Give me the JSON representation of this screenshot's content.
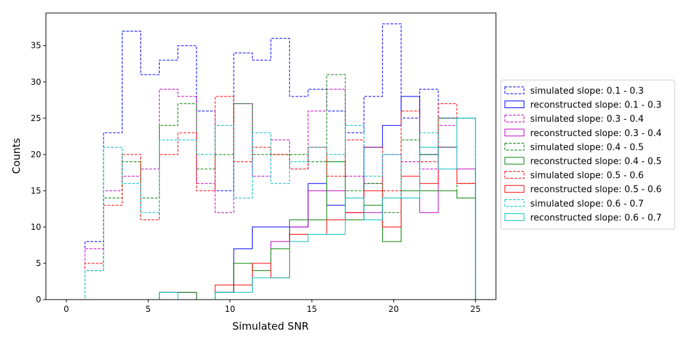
{
  "chart_data": {
    "type": "histogram-step",
    "xlabel": "Simulated SNR",
    "ylabel": "Counts",
    "xlim": [
      -1.25,
      26.25
    ],
    "ylim": [
      0,
      39.5
    ],
    "xticks": [
      0,
      5,
      10,
      15,
      20,
      25
    ],
    "yticks": [
      0,
      5,
      10,
      15,
      20,
      25,
      30,
      35
    ],
    "legend_position": "right-outside",
    "bin_edges": [
      0,
      1.1364,
      2.2727,
      3.4091,
      4.5455,
      5.6818,
      6.8182,
      7.9545,
      9.0909,
      10.2273,
      11.3636,
      12.5,
      13.6364,
      14.7727,
      15.9091,
      17.0455,
      18.1818,
      19.3182,
      20.4545,
      21.5909,
      22.7273,
      23.8636,
      25
    ],
    "series": [
      {
        "name": "simulated slope: 0.1 - 0.3",
        "color": "#0000ff",
        "dashed": true,
        "values": [
          0,
          8,
          23,
          37,
          31,
          33,
          35,
          26,
          15,
          34,
          33,
          36,
          28,
          29,
          26,
          23,
          28,
          38,
          25,
          29,
          25,
          18
        ]
      },
      {
        "name": "reconstructed slope: 0.1 - 0.3",
        "color": "#0000ff",
        "dashed": false,
        "values": [
          0,
          0,
          0,
          0,
          0,
          0,
          0,
          0,
          1,
          7,
          10,
          10,
          10,
          16,
          13,
          14,
          21,
          24,
          28,
          20,
          21,
          18
        ]
      },
      {
        "name": "simulated slope: 0.3 - 0.4",
        "color": "#bf00bf",
        "dashed": true,
        "values": [
          0,
          7,
          15,
          17,
          18,
          29,
          28,
          16,
          12,
          27,
          17,
          22,
          18,
          26,
          29,
          17,
          16,
          20,
          19,
          18,
          24,
          25
        ]
      },
      {
        "name": "reconstructed slope: 0.3 - 0.4",
        "color": "#bf00bf",
        "dashed": false,
        "values": [
          0,
          0,
          0,
          0,
          0,
          1,
          1,
          0,
          1,
          5,
          5,
          8,
          10,
          15,
          15,
          12,
          12,
          14,
          14,
          12,
          21,
          18
        ]
      },
      {
        "name": "simulated slope: 0.4 - 0.5",
        "color": "#008000",
        "dashed": true,
        "values": [
          0,
          4,
          14,
          19,
          14,
          24,
          27,
          18,
          20,
          27,
          20,
          20,
          20,
          19,
          31,
          15,
          16,
          12,
          22,
          20,
          25,
          14
        ]
      },
      {
        "name": "reconstructed slope: 0.4 - 0.5",
        "color": "#008000",
        "dashed": false,
        "values": [
          0,
          0,
          0,
          0,
          0,
          1,
          1,
          0,
          1,
          5,
          4,
          7,
          11,
          11,
          19,
          11,
          13,
          8,
          15,
          15,
          15,
          14
        ]
      },
      {
        "name": "simulated slope: 0.5 - 0.6",
        "color": "#ff0000",
        "dashed": true,
        "values": [
          0,
          5,
          13,
          20,
          11,
          20,
          23,
          15,
          28,
          19,
          21,
          20,
          18,
          21,
          17,
          22,
          21,
          15,
          26,
          19,
          27,
          16
        ]
      },
      {
        "name": "reconstructed slope: 0.5 - 0.6",
        "color": "#ff0000",
        "dashed": false,
        "values": [
          0,
          0,
          0,
          0,
          0,
          0,
          0,
          0,
          2,
          2,
          5,
          3,
          9,
          9,
          11,
          12,
          15,
          10,
          17,
          16,
          21,
          16
        ]
      },
      {
        "name": "simulated slope: 0.6 - 0.7",
        "color": "#00bfbf",
        "dashed": true,
        "values": [
          0,
          4,
          21,
          16,
          12,
          22,
          22,
          20,
          24,
          14,
          23,
          16,
          19,
          21,
          20,
          24,
          17,
          20,
          14,
          23,
          21,
          25
        ]
      },
      {
        "name": "reconstructed slope: 0.6 - 0.7",
        "color": "#00bfbf",
        "dashed": false,
        "values": [
          0,
          0,
          0,
          0,
          0,
          1,
          0,
          0,
          1,
          1,
          3,
          3,
          8,
          9,
          9,
          14,
          11,
          14,
          14,
          21,
          18,
          25
        ]
      }
    ]
  }
}
